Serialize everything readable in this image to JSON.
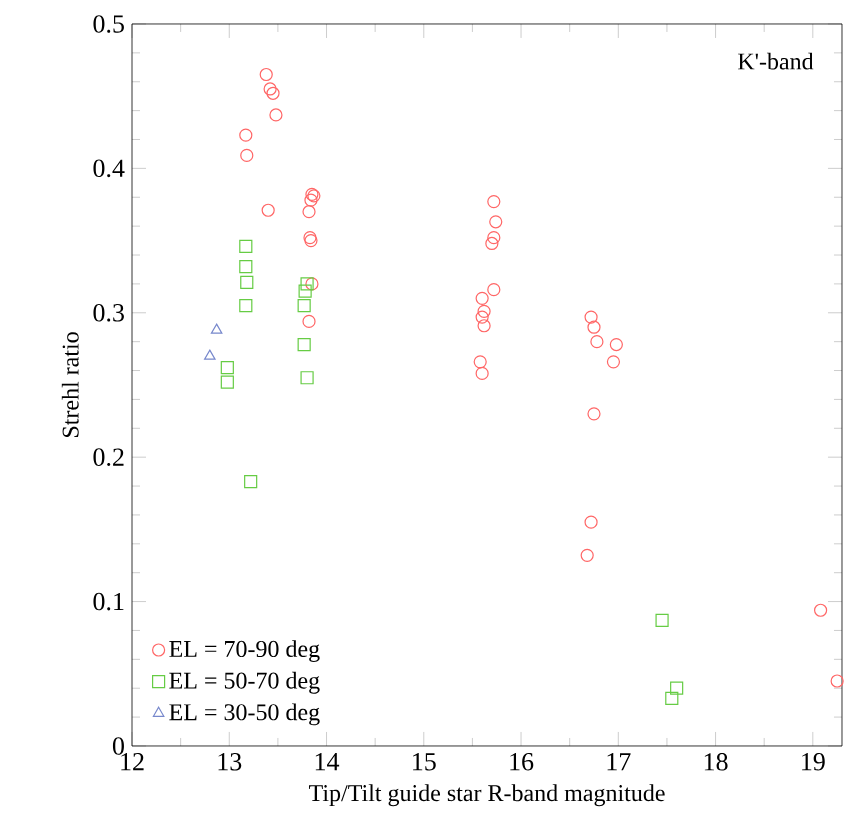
{
  "chart_data": {
    "type": "scatter",
    "xlabel": "Tip/Tilt guide star R-band magnitude",
    "ylabel": "Strehl ratio",
    "annotations": [
      "K'-band"
    ],
    "xlim": [
      12,
      19.3
    ],
    "ylim": [
      0,
      0.5
    ],
    "xticks": [
      12,
      13,
      14,
      15,
      16,
      17,
      18,
      19
    ],
    "yticks": [
      0,
      0.1,
      0.2,
      0.3,
      0.4,
      0.5
    ],
    "legend": "bottom left",
    "grid": false,
    "series": [
      {
        "name": "EL = 70-90 deg",
        "color": "#ff6666",
        "marker": "circle",
        "x": [
          13.38,
          13.42,
          13.45,
          13.48,
          13.17,
          13.18,
          13.4,
          13.85,
          13.87,
          13.84,
          13.82,
          13.83,
          13.84,
          13.85,
          13.82,
          15.72,
          15.74,
          15.72,
          15.7,
          15.72,
          15.6,
          15.62,
          15.6,
          15.62,
          15.58,
          15.6,
          16.72,
          16.75,
          16.78,
          16.98,
          16.95,
          16.75,
          16.72,
          16.68,
          19.08,
          19.25
        ],
        "values": [
          0.465,
          0.455,
          0.452,
          0.437,
          0.423,
          0.409,
          0.371,
          0.382,
          0.381,
          0.378,
          0.37,
          0.352,
          0.35,
          0.32,
          0.294,
          0.377,
          0.363,
          0.352,
          0.348,
          0.316,
          0.31,
          0.301,
          0.297,
          0.291,
          0.266,
          0.258,
          0.297,
          0.29,
          0.28,
          0.278,
          0.266,
          0.23,
          0.155,
          0.132,
          0.094,
          0.045
        ]
      },
      {
        "name": "EL = 50-70 deg",
        "color": "#66cc44",
        "marker": "square",
        "x": [
          13.17,
          13.17,
          13.18,
          13.17,
          13.8,
          13.78,
          13.77,
          13.77,
          13.8,
          12.98,
          12.98,
          13.22,
          17.45,
          17.55,
          17.6
        ],
        "values": [
          0.346,
          0.332,
          0.321,
          0.305,
          0.32,
          0.315,
          0.305,
          0.278,
          0.255,
          0.262,
          0.252,
          0.183,
          0.087,
          0.033,
          0.04
        ]
      },
      {
        "name": "EL = 30-50 deg",
        "color": "#7788cc",
        "marker": "triangle",
        "x": [
          12.87,
          12.8
        ],
        "values": [
          0.288,
          0.27
        ]
      }
    ]
  }
}
